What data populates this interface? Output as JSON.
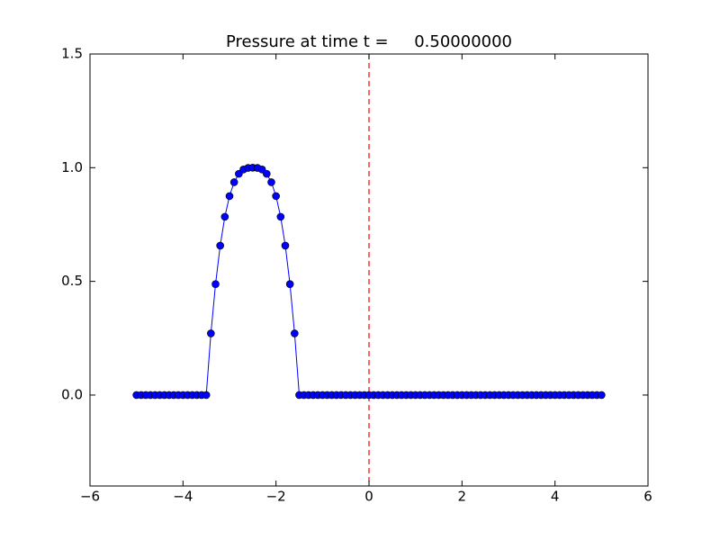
{
  "chart_data": {
    "type": "line",
    "title": "Pressure at time t =     0.50000000",
    "x": [
      -5.0,
      -4.9,
      -4.8,
      -4.7,
      -4.6,
      -4.5,
      -4.4,
      -4.3,
      -4.2,
      -4.1,
      -4.0,
      -3.9,
      -3.8,
      -3.7,
      -3.6,
      -3.5,
      -3.4,
      -3.3,
      -3.2,
      -3.1,
      -3.0,
      -2.9,
      -2.8,
      -2.7,
      -2.6,
      -2.5,
      -2.4,
      -2.3,
      -2.2,
      -2.1,
      -2.0,
      -1.9,
      -1.8,
      -1.7,
      -1.6,
      -1.5,
      -1.4,
      -1.3,
      -1.2,
      -1.1,
      -1.0,
      -0.9,
      -0.8,
      -0.7,
      -0.6,
      -0.5,
      -0.4,
      -0.3,
      -0.2,
      -0.1,
      0.0,
      0.1,
      0.2,
      0.3,
      0.4,
      0.5,
      0.6,
      0.7,
      0.8,
      0.9,
      1.0,
      1.1,
      1.2,
      1.3,
      1.4,
      1.5,
      1.6,
      1.7,
      1.8,
      1.9,
      2.0,
      2.1,
      2.2,
      2.3,
      2.4,
      2.5,
      2.6,
      2.7,
      2.8,
      2.9,
      3.0,
      3.1,
      3.2,
      3.3,
      3.4,
      3.5,
      3.6,
      3.7,
      3.8,
      3.9,
      4.0,
      4.1,
      4.2,
      4.3,
      4.4,
      4.5,
      4.6,
      4.7,
      4.8,
      4.9,
      5.0
    ],
    "series": [
      {
        "color": "#0000ff",
        "edgecolor": "#000000",
        "values": [
          0,
          0,
          0,
          0,
          0,
          0,
          0,
          0,
          0,
          0,
          0,
          0,
          0,
          0,
          0,
          0,
          0.271,
          0.488,
          0.657,
          0.784,
          0.875,
          0.936,
          0.973,
          0.992,
          0.999,
          1,
          0.999,
          0.992,
          0.973,
          0.936,
          0.875,
          0.784,
          0.657,
          0.488,
          0.271,
          0,
          0,
          0,
          0,
          0,
          0,
          0,
          0,
          0,
          0,
          0,
          0,
          0,
          0,
          0,
          0,
          0,
          0,
          0,
          0,
          0,
          0,
          0,
          0,
          0,
          0,
          0,
          0,
          0,
          0,
          0,
          0,
          0,
          0,
          0,
          0,
          0,
          0,
          0,
          0,
          0,
          0,
          0,
          0,
          0,
          0,
          0,
          0,
          0,
          0,
          0,
          0,
          0,
          0,
          0,
          0,
          0,
          0,
          0,
          0,
          0,
          0,
          0,
          0,
          0,
          0
        ]
      }
    ],
    "vline": {
      "value": 0,
      "color": "#ff0000"
    },
    "xlim": [
      -6,
      6
    ],
    "xticks": [
      {
        "value": -6,
        "label": "−6"
      },
      {
        "value": -4,
        "label": "−4"
      },
      {
        "value": -2,
        "label": "−2"
      },
      0,
      2,
      4,
      6
    ],
    "ylim": [
      -0.4,
      1.5
    ],
    "yticks": [
      {
        "value": 0,
        "label": "0.0"
      },
      0.5,
      {
        "value": 1,
        "label": "1.0"
      },
      1.5
    ],
    "grid": false
  }
}
